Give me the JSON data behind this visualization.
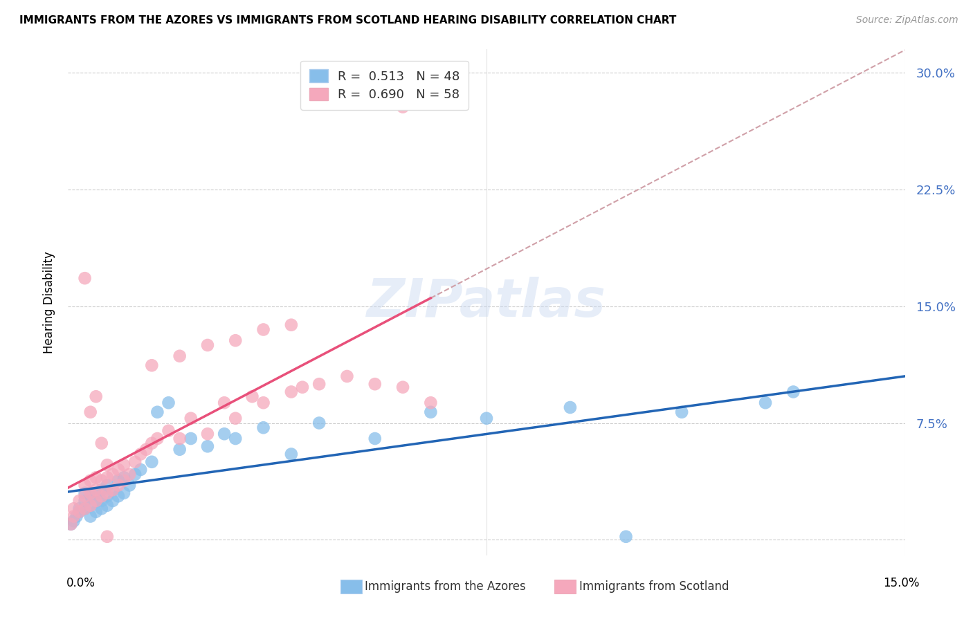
{
  "title": "IMMIGRANTS FROM THE AZORES VS IMMIGRANTS FROM SCOTLAND HEARING DISABILITY CORRELATION CHART",
  "source": "Source: ZipAtlas.com",
  "ylabel": "Hearing Disability",
  "ytick_values": [
    0.0,
    0.075,
    0.15,
    0.225,
    0.3
  ],
  "ytick_labels": [
    "",
    "7.5%",
    "15.0%",
    "22.5%",
    "30.0%"
  ],
  "xlim": [
    0,
    0.15
  ],
  "ylim": [
    -0.01,
    0.315
  ],
  "R_azores": 0.513,
  "N_azores": 48,
  "R_scotland": 0.69,
  "N_scotland": 58,
  "color_azores": "#87BEEA",
  "color_scotland": "#F5A8BC",
  "color_azores_line": "#2265B5",
  "color_scotland_line": "#E8507A",
  "color_dashed_line": "#D0A0A8",
  "watermark": "ZIPatlas",
  "azores_x": [
    0.0005,
    0.001,
    0.0015,
    0.002,
    0.002,
    0.003,
    0.003,
    0.003,
    0.004,
    0.004,
    0.004,
    0.005,
    0.005,
    0.005,
    0.006,
    0.006,
    0.006,
    0.007,
    0.007,
    0.007,
    0.008,
    0.008,
    0.009,
    0.009,
    0.01,
    0.01,
    0.011,
    0.012,
    0.013,
    0.015,
    0.016,
    0.018,
    0.02,
    0.022,
    0.025,
    0.028,
    0.03,
    0.035,
    0.04,
    0.045,
    0.055,
    0.065,
    0.075,
    0.09,
    0.1,
    0.11,
    0.125,
    0.13
  ],
  "azores_y": [
    0.01,
    0.012,
    0.015,
    0.018,
    0.02,
    0.02,
    0.025,
    0.03,
    0.015,
    0.022,
    0.028,
    0.018,
    0.025,
    0.03,
    0.02,
    0.025,
    0.032,
    0.022,
    0.028,
    0.035,
    0.025,
    0.032,
    0.028,
    0.038,
    0.03,
    0.04,
    0.035,
    0.042,
    0.045,
    0.05,
    0.082,
    0.088,
    0.058,
    0.065,
    0.06,
    0.068,
    0.065,
    0.072,
    0.055,
    0.075,
    0.065,
    0.082,
    0.078,
    0.085,
    0.002,
    0.082,
    0.088,
    0.095
  ],
  "scotland_x": [
    0.0005,
    0.001,
    0.001,
    0.002,
    0.002,
    0.003,
    0.003,
    0.003,
    0.004,
    0.004,
    0.004,
    0.005,
    0.005,
    0.005,
    0.006,
    0.006,
    0.007,
    0.007,
    0.007,
    0.008,
    0.008,
    0.009,
    0.009,
    0.01,
    0.01,
    0.011,
    0.012,
    0.013,
    0.014,
    0.015,
    0.016,
    0.018,
    0.02,
    0.022,
    0.025,
    0.028,
    0.03,
    0.033,
    0.035,
    0.04,
    0.042,
    0.045,
    0.05,
    0.055,
    0.06,
    0.065,
    0.015,
    0.02,
    0.025,
    0.03,
    0.035,
    0.04,
    0.003,
    0.004,
    0.005,
    0.006,
    0.007,
    0.06
  ],
  "scotland_y": [
    0.01,
    0.015,
    0.02,
    0.018,
    0.025,
    0.02,
    0.028,
    0.035,
    0.022,
    0.03,
    0.038,
    0.025,
    0.032,
    0.04,
    0.028,
    0.038,
    0.03,
    0.04,
    0.048,
    0.032,
    0.042,
    0.035,
    0.045,
    0.038,
    0.048,
    0.042,
    0.05,
    0.055,
    0.058,
    0.062,
    0.065,
    0.07,
    0.065,
    0.078,
    0.068,
    0.088,
    0.078,
    0.092,
    0.088,
    0.095,
    0.098,
    0.1,
    0.105,
    0.1,
    0.098,
    0.088,
    0.112,
    0.118,
    0.125,
    0.128,
    0.135,
    0.138,
    0.168,
    0.082,
    0.092,
    0.062,
    0.002,
    0.278
  ]
}
